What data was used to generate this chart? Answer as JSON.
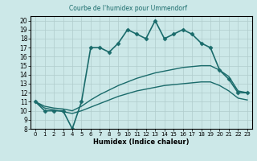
{
  "title": "Courbe de l'humidex pour Ummendorf",
  "xlabel": "Humidex (Indice chaleur)",
  "background_color": "#cce8e8",
  "grid_color": "#b0cccc",
  "line_color": "#1a6b6b",
  "xlim": [
    -0.5,
    23.5
  ],
  "ylim": [
    8,
    20.5
  ],
  "yticks": [
    8,
    9,
    10,
    11,
    12,
    13,
    14,
    15,
    16,
    17,
    18,
    19,
    20
  ],
  "xticks": [
    0,
    1,
    2,
    3,
    4,
    5,
    6,
    7,
    8,
    9,
    10,
    11,
    12,
    13,
    14,
    15,
    16,
    17,
    18,
    19,
    20,
    21,
    22,
    23
  ],
  "main_x": [
    0,
    1,
    2,
    3,
    4,
    5,
    6,
    7,
    8,
    9,
    10,
    11,
    12,
    13,
    14,
    15,
    16,
    17,
    18,
    19,
    20,
    21,
    22,
    23
  ],
  "main_y": [
    11,
    10,
    10,
    10,
    8,
    11,
    17,
    17,
    16.5,
    17.5,
    19,
    18.5,
    18,
    20,
    18,
    18.5,
    19,
    18.5,
    17.5,
    17,
    14.5,
    13.5,
    12,
    12
  ],
  "upper_smooth_x": [
    0,
    1,
    2,
    3,
    4,
    5,
    6,
    7,
    8,
    9,
    10,
    11,
    12,
    13,
    14,
    15,
    16,
    17,
    18,
    19,
    20,
    21,
    22,
    23
  ],
  "upper_smooth_y": [
    11,
    10.5,
    10.3,
    10.2,
    10.0,
    10.5,
    11.2,
    11.8,
    12.3,
    12.8,
    13.2,
    13.6,
    13.9,
    14.2,
    14.4,
    14.6,
    14.8,
    14.9,
    15.0,
    15.0,
    14.5,
    13.8,
    12.2,
    12.0
  ],
  "lower_smooth_x": [
    0,
    1,
    2,
    3,
    4,
    5,
    6,
    7,
    8,
    9,
    10,
    11,
    12,
    13,
    14,
    15,
    16,
    17,
    18,
    19,
    20,
    21,
    22,
    23
  ],
  "lower_smooth_y": [
    11,
    10.3,
    10.1,
    9.9,
    9.7,
    10.0,
    10.4,
    10.8,
    11.2,
    11.6,
    11.9,
    12.2,
    12.4,
    12.6,
    12.8,
    12.9,
    13.0,
    13.1,
    13.2,
    13.2,
    12.8,
    12.2,
    11.4,
    11.2
  ]
}
